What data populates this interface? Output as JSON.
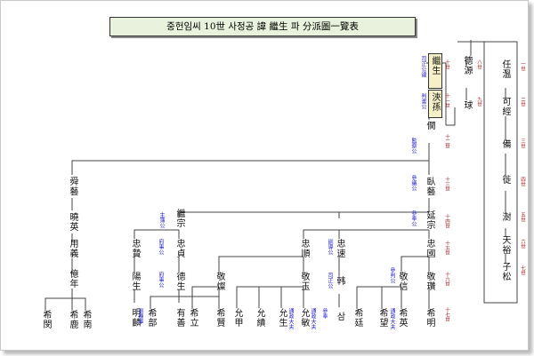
{
  "title": "중헌임씨 10世 사정공 諱 繼生 파 分派圖一覽表",
  "colors": {
    "name": "#111111",
    "office_label": "#1a1ac8",
    "generation_label": "#a01818",
    "highlight_box": "#f6f0c8",
    "title_box": "#e9f2dc",
    "line": "#444444"
  },
  "nodes": {
    "renwen": "任溫",
    "kejing": "可經",
    "bei": "備",
    "chuo": "徙",
    "shu": "澍",
    "tianyu": "天裕",
    "zisong": "子松",
    "deyuan": "德源",
    "qiu": "球",
    "jisheng": "繼生",
    "xunsun": "浹孫",
    "jian": "僩",
    "shunji": "舜藝",
    "xiaoying": "曉英",
    "yongyi": "用義",
    "dunian": "億年",
    "jisong": "繼宗",
    "zhongzhi": "忠贄",
    "lizhi": "忠貞",
    "yangsheng": "陽生",
    "desheng": "德生",
    "ximin": "希閔",
    "xilu": "希鹿",
    "xinan": "希南",
    "minglin": "明麟",
    "xizhao": "希部",
    "youshan": "有善",
    "xili": "希立",
    "xixian": "希賢",
    "yunjia": "允甲",
    "yunqi": "允績",
    "yunsheng": "允生",
    "yunmin": "允敏",
    "zhuyi": "臥藝",
    "mingzong": "延宗",
    "zhongshun": "忠順",
    "zhonglian": "忠速",
    "zhongguo": "忠國",
    "jingcan": "敬燦",
    "jingyu": "敬玉",
    "jingyou": "敬信",
    "jingcheng": "敬瓚",
    "han": "韩",
    "xiyi": "希廷",
    "xiwang": "希望",
    "xiying": "希英",
    "ximing": "希明",
    "shao": "삼"
  },
  "labels": {
    "jisheng": "司正公諱",
    "xunsun": "判書公",
    "jian": "監察公",
    "zhuyi": "參議公",
    "mingzong": "參奉公",
    "jisong": "主簿公",
    "zhongzhi": "府事公",
    "desheng": "府事公",
    "zhongshun": "訓導公",
    "zhonglian": "司正公",
    "jingyou": "參判公",
    "minglin": "訓練軍",
    "xizhao": "訓練軍",
    "yunmin": "通政大夫",
    "yunsheng": "通政大夫",
    "han": "參奉",
    "xiying": "通政大夫"
  },
  "generations": {
    "g1": "一世",
    "g2": "二世",
    "g3": "三世",
    "g4": "四世",
    "g5": "五世",
    "g6": "六世",
    "g7": "七世",
    "g8": "八世",
    "g9": "九世",
    "g10": "十世",
    "g11": "十一世",
    "g12": "十二世",
    "g13": "十三世",
    "g14": "十四世",
    "g15": "十五世",
    "g16": "十六世",
    "g17": "十七世"
  }
}
